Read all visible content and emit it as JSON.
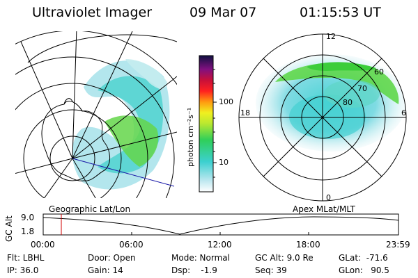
{
  "header": {
    "instrument": "Ultraviolet Imager",
    "date": "09 Mar 07",
    "time": "01:15:53 UT"
  },
  "colorbar": {
    "unit_label": "photon cm⁻²s⁻¹",
    "ticks": [
      "100",
      "10"
    ],
    "scale": "log"
  },
  "polar_plot": {
    "mlt_labels": {
      "top": "12",
      "left": "18",
      "right": "6",
      "bottom": "0"
    },
    "lat_labels": [
      "60",
      "70",
      "80"
    ]
  },
  "timeline": {
    "left_title": "Geographic Lat/Lon",
    "right_title": "Apex MLat/MLT",
    "y_axis_label": "GC Alt",
    "y_ticks": [
      "9.0",
      "1.8"
    ],
    "x_ticks": [
      "00:00",
      "06:00",
      "12:00",
      "18:00",
      "23:59"
    ],
    "marker_color": "#d00000"
  },
  "footer": {
    "flt": "Flt: LBHL",
    "ip": "IP: 36.0",
    "door": "Door: Open",
    "gain": "Gain: 14",
    "mode": "Mode: Normal",
    "dsp": "Dsp:    -1.9",
    "gcalt": "GC Alt: 9.0 Re",
    "seq": "Seq: 39",
    "glat": "GLat:  -71.6",
    "glon": "GLon:   90.5"
  },
  "colors": {
    "aurora_low": "#9adfe8",
    "aurora_mid": "#41cfd0",
    "aurora_high": "#6fd84a",
    "aurora_peak": "#3ec93a"
  }
}
